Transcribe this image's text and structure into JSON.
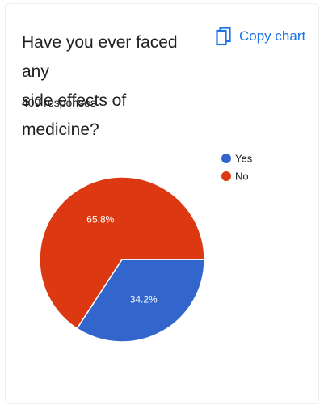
{
  "question": {
    "title_line1": "Have you ever faced any",
    "title_line2": "side effects of medicine?"
  },
  "copy_button": {
    "label": "Copy chart",
    "icon": "copy-icon"
  },
  "responses_label": "409 responses",
  "colors": {
    "yes": "#3366cc",
    "no": "#dc3912",
    "accent": "#1a73e8",
    "text": "#202124"
  },
  "chart_data": {
    "type": "pie",
    "title": "",
    "categories": [
      "Yes",
      "No"
    ],
    "values": [
      34.2,
      65.8
    ],
    "labels": [
      "34.2%",
      "65.8%"
    ],
    "legend_position": "right"
  }
}
